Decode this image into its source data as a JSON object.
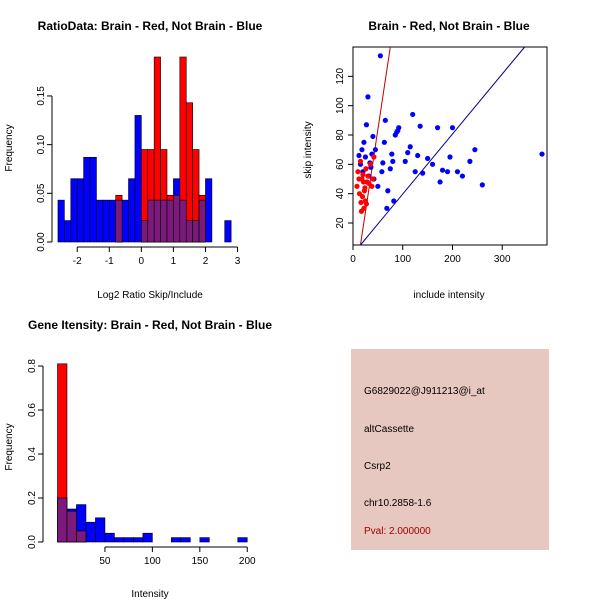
{
  "colors": {
    "brain": "#ff0000",
    "not_brain": "#0000ff",
    "overlap": "#7b1a7b",
    "info_bg": "#e6c8c0",
    "pval_text": "#a00000",
    "fit_brain": "#c00000",
    "fit_not_brain": "#00008b"
  },
  "chart_data": [
    {
      "type": "bar",
      "subtype": "overlaid-histogram",
      "title": "RatioData: Brain - Red, Not Brain - Blue",
      "xlabel": "Log2 Ratio Skip/Include",
      "ylabel": "Frequency",
      "xlim": [
        -2.63,
        3.17
      ],
      "ylim": [
        0,
        0.19
      ],
      "xticks": [
        -2,
        -1,
        0,
        1,
        2,
        3
      ],
      "yticks": [
        0.0,
        0.05,
        0.1,
        0.15
      ],
      "ytick_labels": [
        "0.00",
        "0.05",
        "0.10",
        "0.15"
      ],
      "bin_width": 0.2,
      "series": [
        {
          "name": "Not Brain",
          "color": "blue",
          "bins": [
            {
              "x": -2.5,
              "value": 0.043
            },
            {
              "x": -2.3,
              "value": 0.022
            },
            {
              "x": -2.1,
              "value": 0.065
            },
            {
              "x": -1.9,
              "value": 0.065
            },
            {
              "x": -1.7,
              "value": 0.087
            },
            {
              "x": -1.5,
              "value": 0.087
            },
            {
              "x": -1.3,
              "value": 0.043
            },
            {
              "x": -1.1,
              "value": 0.043
            },
            {
              "x": -0.9,
              "value": 0.043
            },
            {
              "x": -0.7,
              "value": 0.043
            },
            {
              "x": -0.5,
              "value": 0.043
            },
            {
              "x": -0.3,
              "value": 0.065
            },
            {
              "x": -0.1,
              "value": 0.13
            },
            {
              "x": 0.1,
              "value": 0.022
            },
            {
              "x": 0.3,
              "value": 0.043
            },
            {
              "x": 0.5,
              "value": 0.043
            },
            {
              "x": 0.7,
              "value": 0.043
            },
            {
              "x": 0.9,
              "value": 0.043
            },
            {
              "x": 1.1,
              "value": 0.065
            },
            {
              "x": 1.3,
              "value": 0.043
            },
            {
              "x": 1.5,
              "value": 0.022
            },
            {
              "x": 1.7,
              "value": 0.022
            },
            {
              "x": 1.9,
              "value": 0.043
            },
            {
              "x": 2.1,
              "value": 0.065
            },
            {
              "x": 2.7,
              "value": 0.022
            }
          ]
        },
        {
          "name": "Brain",
          "color": "red",
          "bins": [
            {
              "x": -0.7,
              "value": 0.048
            },
            {
              "x": 0.1,
              "value": 0.095
            },
            {
              "x": 0.3,
              "value": 0.095
            },
            {
              "x": 0.5,
              "value": 0.19
            },
            {
              "x": 0.7,
              "value": 0.095
            },
            {
              "x": 0.9,
              "value": 0.048
            },
            {
              "x": 1.1,
              "value": 0.048
            },
            {
              "x": 1.3,
              "value": 0.19
            },
            {
              "x": 1.5,
              "value": 0.143
            },
            {
              "x": 1.7,
              "value": 0.095
            },
            {
              "x": 1.9,
              "value": 0.048
            }
          ]
        }
      ]
    },
    {
      "type": "scatter",
      "title": "Brain - Red, Not Brain - Blue",
      "xlabel": "include intensity",
      "ylabel": "skip intensity",
      "xlim": [
        0,
        390
      ],
      "ylim": [
        5,
        140
      ],
      "xticks": [
        0,
        100,
        200,
        300
      ],
      "yticks": [
        20,
        40,
        60,
        80,
        100,
        120
      ],
      "series": [
        {
          "name": "Not Brain",
          "color": "blue",
          "points": [
            [
              12,
              66
            ],
            [
              15,
              60
            ],
            [
              18,
              70
            ],
            [
              20,
              55
            ],
            [
              22,
              75
            ],
            [
              25,
              65
            ],
            [
              27,
              87
            ],
            [
              28,
              48
            ],
            [
              30,
              106
            ],
            [
              32,
              52
            ],
            [
              34,
              61
            ],
            [
              36,
              58
            ],
            [
              38,
              67
            ],
            [
              40,
              79
            ],
            [
              42,
              50
            ],
            [
              45,
              70
            ],
            [
              50,
              45
            ],
            [
              55,
              134
            ],
            [
              58,
              55
            ],
            [
              60,
              61
            ],
            [
              63,
              75
            ],
            [
              65,
              90
            ],
            [
              68,
              30
            ],
            [
              70,
              42
            ],
            [
              75,
              57
            ],
            [
              78,
              67
            ],
            [
              80,
              62
            ],
            [
              82,
              35
            ],
            [
              85,
              80
            ],
            [
              88,
              82
            ],
            [
              90,
              83
            ],
            [
              92,
              85
            ],
            [
              105,
              62
            ],
            [
              110,
              68
            ],
            [
              115,
              72
            ],
            [
              120,
              94
            ],
            [
              125,
              55
            ],
            [
              130,
              66
            ],
            [
              135,
              86
            ],
            [
              140,
              54
            ],
            [
              150,
              64
            ],
            [
              160,
              60
            ],
            [
              170,
              85
            ],
            [
              175,
              48
            ],
            [
              180,
              56
            ],
            [
              190,
              55
            ],
            [
              195,
              65
            ],
            [
              200,
              85
            ],
            [
              210,
              55
            ],
            [
              220,
              52
            ],
            [
              235,
              62
            ],
            [
              245,
              70
            ],
            [
              260,
              46
            ],
            [
              380,
              67
            ]
          ]
        },
        {
          "name": "Brain",
          "color": "red",
          "points": [
            [
              8,
              45
            ],
            [
              10,
              55
            ],
            [
              12,
              50
            ],
            [
              13,
              40
            ],
            [
              15,
              62
            ],
            [
              16,
              34
            ],
            [
              17,
              28
            ],
            [
              18,
              50
            ],
            [
              19,
              38
            ],
            [
              20,
              53
            ],
            [
              21,
              48
            ],
            [
              22,
              30
            ],
            [
              23,
              42
            ],
            [
              24,
              44
            ],
            [
              25,
              35
            ],
            [
              26,
              57
            ],
            [
              27,
              33
            ],
            [
              28,
              48
            ],
            [
              30,
              52
            ],
            [
              32,
              47
            ],
            [
              35,
              60
            ],
            [
              38,
              45
            ],
            [
              40,
              50
            ],
            [
              42,
              65
            ]
          ]
        }
      ],
      "fits": [
        {
          "name": "Brain fit",
          "color": "red",
          "from": [
            15,
            5
          ],
          "to": [
            75,
            140
          ]
        },
        {
          "name": "Not Brain fit",
          "color": "navy",
          "from": [
            15,
            5
          ],
          "to": [
            345,
            140
          ]
        }
      ]
    },
    {
      "type": "bar",
      "subtype": "overlaid-histogram",
      "title": "Gene Itensity: Brain - Red, Not Brain - Blue",
      "xlabel": "Intensity",
      "ylabel": "Frequency",
      "xlim": [
        -10,
        205
      ],
      "ylim": [
        0,
        0.85
      ],
      "xticks": [
        50,
        100,
        150,
        200
      ],
      "yticks": [
        0.0,
        0.2,
        0.4,
        0.6,
        0.8
      ],
      "ytick_labels": [
        "0.0",
        "0.2",
        "0.4",
        "0.6",
        "0.8"
      ],
      "bin_width": 10,
      "series": [
        {
          "name": "Not Brain",
          "color": "blue",
          "bins": [
            {
              "x": 5,
              "value": 0.2
            },
            {
              "x": 15,
              "value": 0.15
            },
            {
              "x": 25,
              "value": 0.17
            },
            {
              "x": 35,
              "value": 0.09
            },
            {
              "x": 45,
              "value": 0.11
            },
            {
              "x": 55,
              "value": 0.04
            },
            {
              "x": 65,
              "value": 0.02
            },
            {
              "x": 75,
              "value": 0.02
            },
            {
              "x": 85,
              "value": 0.02
            },
            {
              "x": 95,
              "value": 0.04
            },
            {
              "x": 125,
              "value": 0.02
            },
            {
              "x": 135,
              "value": 0.02
            },
            {
              "x": 155,
              "value": 0.02
            },
            {
              "x": 195,
              "value": 0.02
            }
          ]
        },
        {
          "name": "Brain",
          "color": "red",
          "bins": [
            {
              "x": 5,
              "value": 0.81
            },
            {
              "x": 15,
              "value": 0.14
            },
            {
              "x": 25,
              "value": 0.05
            }
          ]
        }
      ]
    }
  ],
  "info_panel": {
    "probe_id": "G6829022@J911213@i_at",
    "event_type": "altCassette",
    "gene": "Csrp2",
    "location": "chr10.2858-1.6",
    "pval": "Pval: 2.000000"
  }
}
